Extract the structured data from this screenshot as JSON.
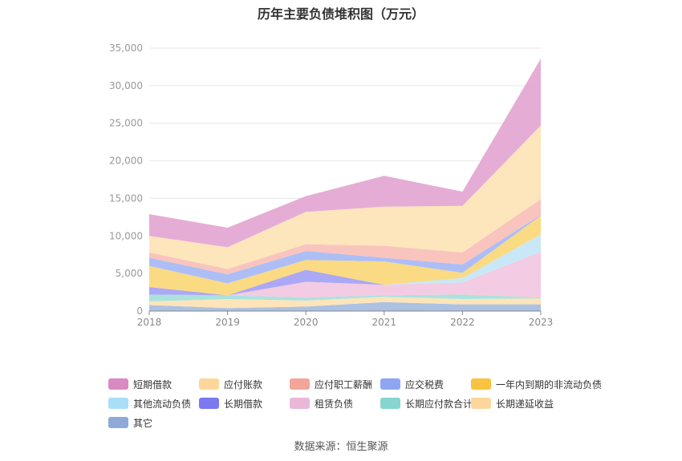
{
  "title": "历年主要负债堆积图（万元）",
  "source": "数据来源：恒生聚源",
  "chart_data": {
    "type": "area",
    "stacked": true,
    "title": "历年主要负债堆积图（万元）",
    "categories": [
      "2018",
      "2019",
      "2020",
      "2021",
      "2022",
      "2023"
    ],
    "ylim": [
      0,
      35000
    ],
    "yticks": [
      "0",
      "5,000",
      "10,000",
      "15,000",
      "20,000",
      "25,000",
      "30,000",
      "35,000"
    ],
    "grid": true,
    "legend_position": "bottom",
    "series": [
      {
        "name": "其它",
        "color": "#a9bfe0",
        "values": [
          800,
          400,
          600,
          1200,
          900,
          900
        ]
      },
      {
        "name": "长期递延收益",
        "color": "#fde3b5",
        "values": [
          500,
          1200,
          800,
          700,
          700,
          800
        ]
      },
      {
        "name": "长期应付款合计",
        "color": "#a7e0dc",
        "values": [
          900,
          500,
          400,
          200,
          600,
          100
        ]
      },
      {
        "name": "租赁负债",
        "color": "#f2c8e0",
        "values": [
          0,
          0,
          2100,
          1400,
          1600,
          6100
        ]
      },
      {
        "name": "长期借款",
        "color": "#a7a3f5",
        "values": [
          1000,
          0,
          1600,
          0,
          0,
          0
        ]
      },
      {
        "name": "其他流动负债",
        "color": "#c5e7f7",
        "values": [
          0,
          0,
          0,
          0,
          600,
          2300
        ]
      },
      {
        "name": "一年内到期的非流动负债",
        "color": "#fbd87d",
        "values": [
          2800,
          1600,
          1300,
          3100,
          700,
          2500
        ]
      },
      {
        "name": "应交税费",
        "color": "#a9bbf6",
        "values": [
          1100,
          1200,
          1200,
          500,
          1100,
          100
        ]
      },
      {
        "name": "应付职工薪酬",
        "color": "#f9c1bb",
        "values": [
          700,
          700,
          900,
          1600,
          1600,
          2100
        ]
      },
      {
        "name": "应付账款",
        "color": "#fde4b8",
        "values": [
          2200,
          2900,
          4300,
          5200,
          6200,
          9800
        ]
      },
      {
        "name": "短期借款",
        "color": "#e4a9d3",
        "values": [
          2900,
          2600,
          2100,
          4100,
          1900,
          8900
        ]
      }
    ]
  },
  "legend": [
    {
      "label": "短期借款",
      "color": "#d98ac2"
    },
    {
      "label": "应付账款",
      "color": "#fdd79a"
    },
    {
      "label": "应付职工薪酬",
      "color": "#f4a599"
    },
    {
      "label": "应交税费",
      "color": "#8ea6f2"
    },
    {
      "label": "一年内到期的非流动负债",
      "color": "#f9c240"
    },
    {
      "label": "其他流动负债",
      "color": "#a8dff6"
    },
    {
      "label": "长期借款",
      "color": "#7b78f0"
    },
    {
      "label": "租赁负债",
      "color": "#e9b7d8"
    },
    {
      "label": "长期应付款合计",
      "color": "#86d5d1"
    },
    {
      "label": "长期递延收益",
      "color": "#fdd69d"
    },
    {
      "label": "其它",
      "color": "#8fa9d8"
    }
  ]
}
